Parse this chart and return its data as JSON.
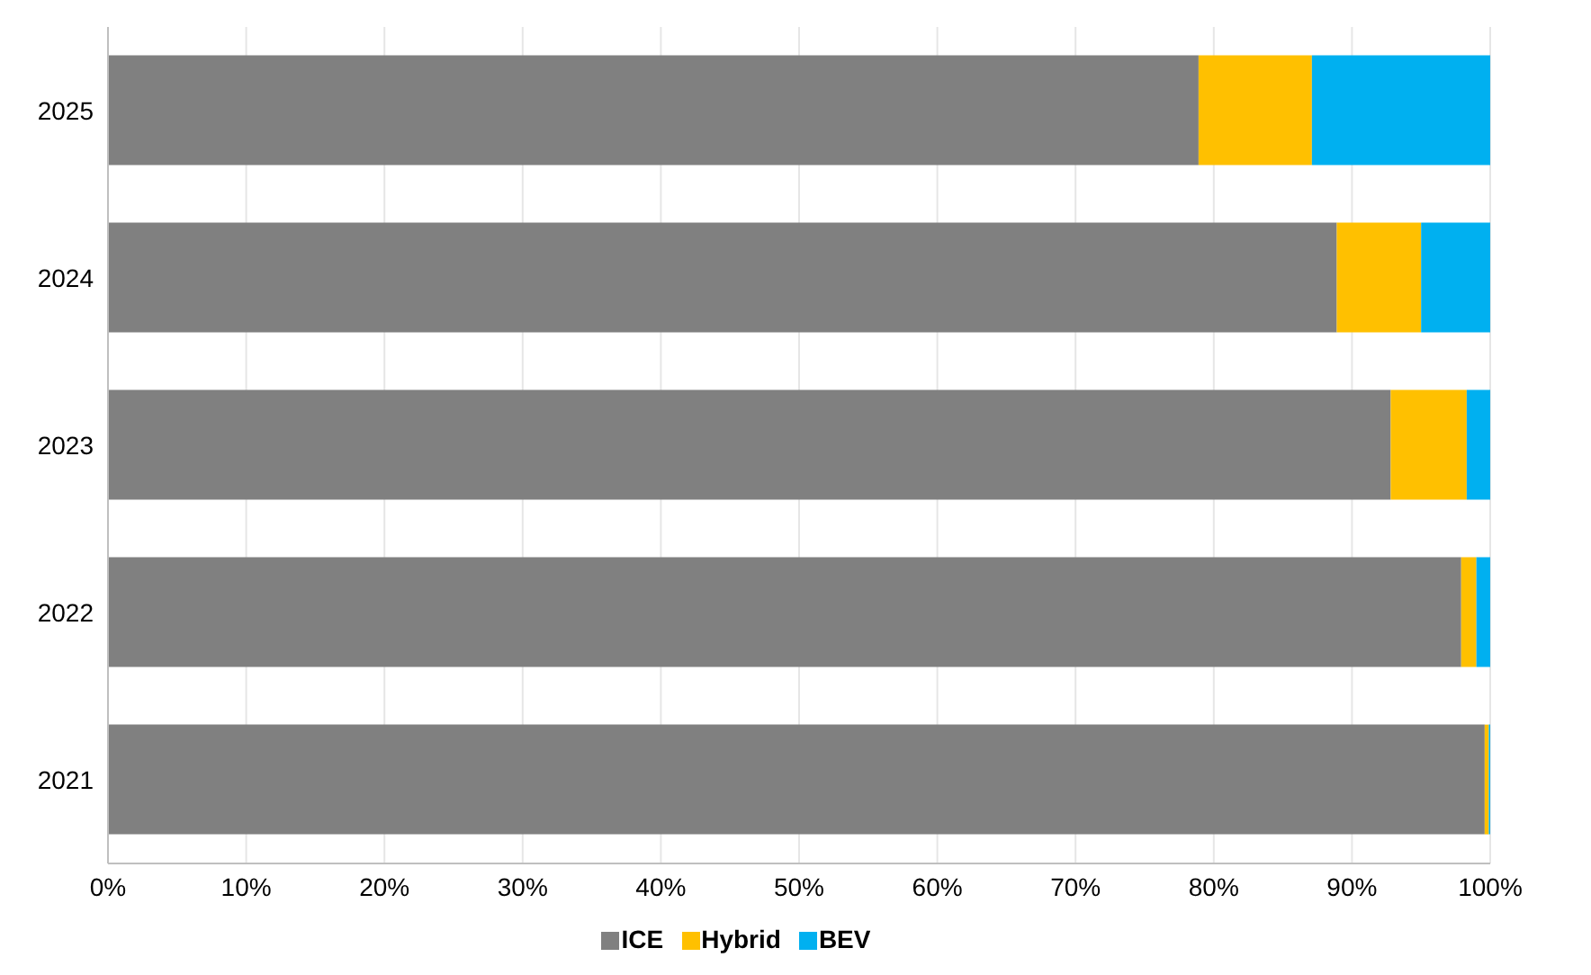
{
  "chart_data": {
    "type": "bar",
    "orientation": "horizontal",
    "stacked": true,
    "categories": [
      "2025",
      "2024",
      "2023",
      "2022",
      "2021"
    ],
    "series": [
      {
        "name": "ICE",
        "color": "#808080",
        "values": [
          78.9,
          88.9,
          92.8,
          97.9,
          99.6
        ]
      },
      {
        "name": "Hybrid",
        "color": "#ffc000",
        "values": [
          8.2,
          6.1,
          5.5,
          1.1,
          0.3
        ]
      },
      {
        "name": "BEV",
        "color": "#00b0f0",
        "values": [
          12.9,
          5.0,
          1.7,
          1.0,
          0.1
        ]
      }
    ],
    "xlim": [
      0,
      100
    ],
    "xticks": [
      {
        "value": 0,
        "label": "0%"
      },
      {
        "value": 10,
        "label": "10%"
      },
      {
        "value": 20,
        "label": "20%"
      },
      {
        "value": 30,
        "label": "30%"
      },
      {
        "value": 40,
        "label": "40%"
      },
      {
        "value": 50,
        "label": "50%"
      },
      {
        "value": 60,
        "label": "60%"
      },
      {
        "value": 70,
        "label": "70%"
      },
      {
        "value": 80,
        "label": "80%"
      },
      {
        "value": 90,
        "label": "90%"
      },
      {
        "value": 100,
        "label": "100%"
      }
    ],
    "grid": "x",
    "legend": "bottom"
  }
}
